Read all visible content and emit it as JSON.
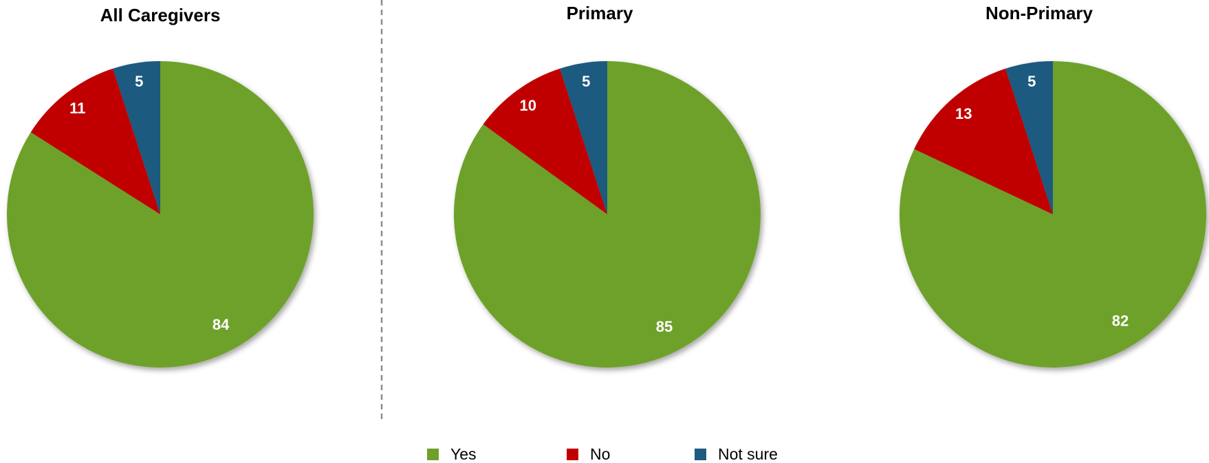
{
  "chart_data": [
    {
      "type": "pie",
      "title": "All Caregivers",
      "slices": [
        {
          "label": "Yes",
          "value": 84,
          "color": "#6ea12a"
        },
        {
          "label": "No",
          "value": 11,
          "color": "#c00000"
        },
        {
          "label": "Not sure",
          "value": 5,
          "color": "#1f5a80"
        }
      ]
    },
    {
      "type": "pie",
      "title": "Primary",
      "slices": [
        {
          "label": "Yes",
          "value": 85,
          "color": "#6ea12a"
        },
        {
          "label": "No",
          "value": 10,
          "color": "#c00000"
        },
        {
          "label": "Not sure",
          "value": 5,
          "color": "#1f5a80"
        }
      ]
    },
    {
      "type": "pie",
      "title": "Non-Primary",
      "slices": [
        {
          "label": "Yes",
          "value": 82,
          "color": "#6ea12a"
        },
        {
          "label": "No",
          "value": 13,
          "color": "#c00000"
        },
        {
          "label": "Not sure",
          "value": 5,
          "color": "#1f5a80"
        }
      ]
    }
  ],
  "legend": {
    "placement": "bottom-center",
    "items": [
      {
        "label": "Yes",
        "color": "#6ea12a"
      },
      {
        "label": "No",
        "color": "#c00000"
      },
      {
        "label": "Not sure",
        "color": "#1f5a80"
      }
    ]
  }
}
